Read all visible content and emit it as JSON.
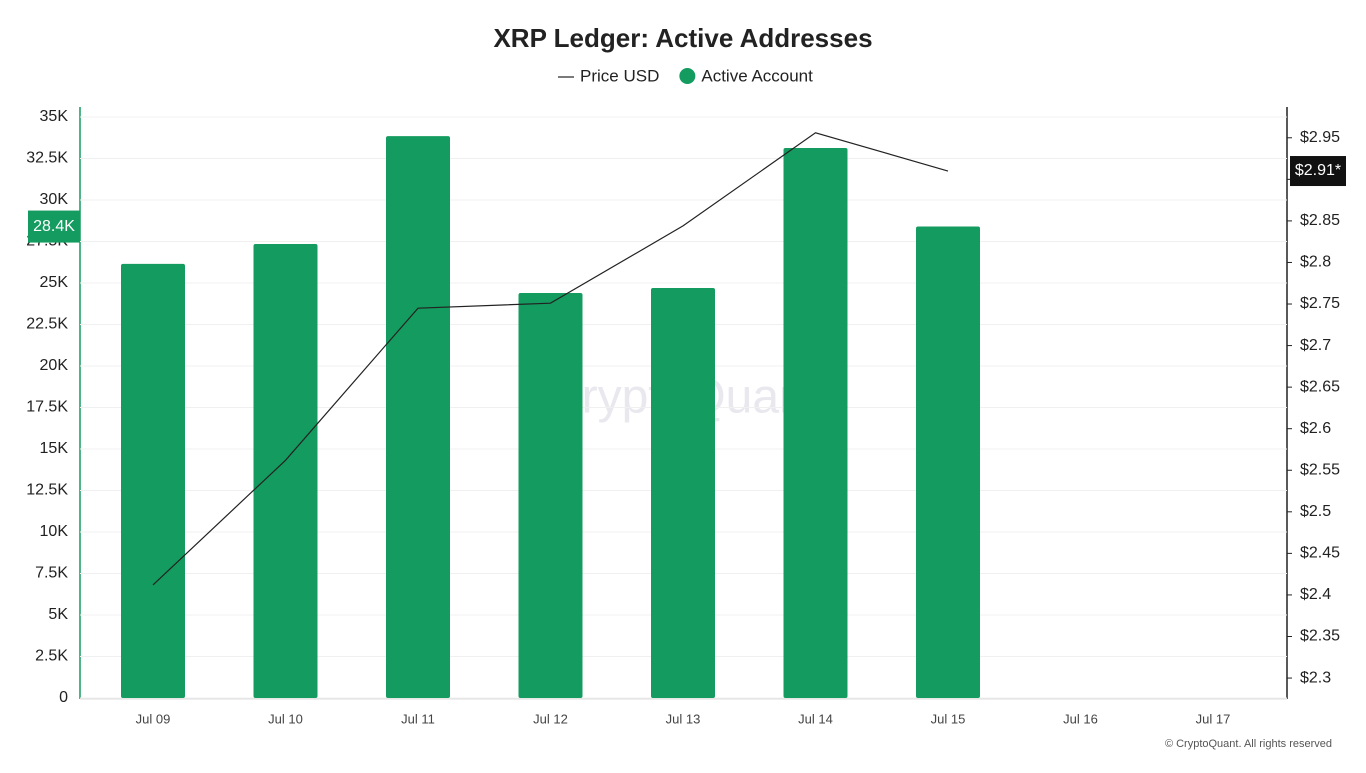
{
  "chart_data": {
    "type": "bar_line",
    "title": "XRP Ledger: Active Addresses",
    "watermark": "CryptoQuant",
    "footer": "© CryptoQuant. All rights reserved",
    "categories": [
      "Jul 09",
      "Jul 10",
      "Jul 11",
      "Jul 12",
      "Jul 13",
      "Jul 14",
      "Jul 15",
      "Jul 16",
      "Jul 17"
    ],
    "series": [
      {
        "name": "Price USD",
        "type": "line",
        "axis": "y2",
        "color": "#222222",
        "values": [
          2.412,
          2.562,
          2.745,
          2.751,
          2.844,
          2.956,
          2.91,
          null,
          null
        ],
        "value_labels": [
          null,
          null,
          null,
          null,
          null,
          null,
          "$2.91*",
          null,
          null
        ]
      },
      {
        "name": "Active Account",
        "type": "bar",
        "color": "#149b5f",
        "values": [
          26150,
          27350,
          33850,
          24400,
          24700,
          33130,
          28400,
          null,
          null
        ],
        "value_labels": [
          null,
          null,
          null,
          null,
          null,
          null,
          "28.4K",
          null,
          null
        ]
      }
    ],
    "ylim": [
      0,
      35000
    ],
    "yticks": [
      0,
      {
        "value": 2500,
        "label": "2.5K"
      },
      {
        "value": 5000,
        "label": "5K"
      },
      {
        "value": 7500,
        "label": "7.5K"
      },
      {
        "value": 10000,
        "label": "10K"
      },
      {
        "value": 12500,
        "label": "12.5K"
      },
      {
        "value": 15000,
        "label": "15K"
      },
      {
        "value": 17500,
        "label": "17.5K"
      },
      {
        "value": 20000,
        "label": "20K"
      },
      {
        "value": 22500,
        "label": "22.5K"
      },
      {
        "value": 25000,
        "label": "25K"
      },
      {
        "value": 27500,
        "label": "27.5K"
      },
      {
        "value": 30000,
        "label": "30K"
      },
      {
        "value": 32500,
        "label": "32.5K"
      },
      {
        "value": 35000,
        "label": "35K"
      }
    ],
    "y2lim": [
      2.276,
      2.975
    ],
    "y2ticks": [
      {
        "value": 2.3,
        "label": "$2.3"
      },
      {
        "value": 2.35,
        "label": "$2.35"
      },
      {
        "value": 2.4,
        "label": "$2.4"
      },
      {
        "value": 2.45,
        "label": "$2.45"
      },
      {
        "value": 2.5,
        "label": "$2.5"
      },
      {
        "value": 2.55,
        "label": "$2.55"
      },
      {
        "value": 2.6,
        "label": "$2.6"
      },
      {
        "value": 2.65,
        "label": "$2.65"
      },
      {
        "value": 2.7,
        "label": "$2.7"
      },
      {
        "value": 2.75,
        "label": "$2.75"
      },
      {
        "value": 2.8,
        "label": "$2.8"
      },
      {
        "value": 2.85,
        "label": "$2.85"
      },
      {
        "value": 2.9,
        "label": "$2.9"
      },
      {
        "value": 2.95,
        "label": "$2.95"
      }
    ],
    "grid": true
  }
}
